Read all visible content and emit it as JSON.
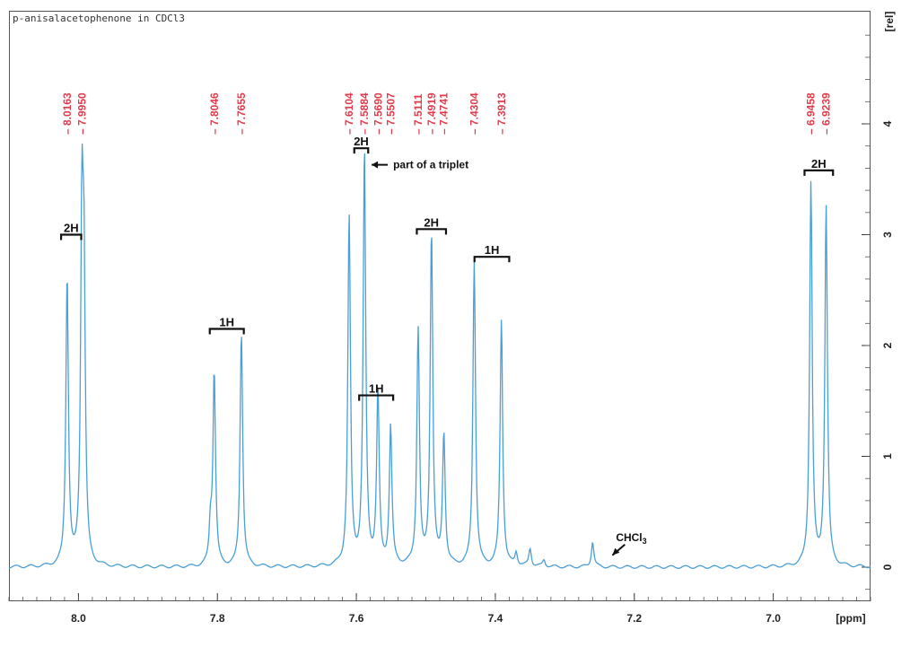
{
  "sample_title": "p-anisalacetophenone in CDCl3",
  "chart_data": {
    "type": "line",
    "title": "p-anisalacetophenone in CDCl3",
    "xlabel": "[ppm]",
    "ylabel": "[rel]",
    "x_axis_reversed": true,
    "xlim": [
      8.1,
      6.86
    ],
    "ylim": [
      -0.25,
      5.0
    ],
    "x_ticks": [
      "8.0",
      "7.8",
      "7.6",
      "7.4",
      "7.2",
      "7.0"
    ],
    "y_ticks": [
      "0",
      "1",
      "2",
      "3",
      "4"
    ],
    "peak_labels": [
      "8.0163",
      "7.9950",
      "7.8046",
      "7.7655",
      "7.6104",
      "7.5884",
      "7.5690",
      "7.5507",
      "7.5111",
      "7.4919",
      "7.4741",
      "7.4304",
      "7.3913",
      "6.9458",
      "6.9239"
    ],
    "peaks": [
      {
        "x": 8.0163,
        "y": 2.62
      },
      {
        "x": 7.995,
        "y": 2.95
      },
      {
        "x": 7.992,
        "y": 2.28
      },
      {
        "x": 7.8046,
        "y": 1.75
      },
      {
        "x": 7.7655,
        "y": 2.12
      },
      {
        "x": 7.81,
        "y": 0.33
      },
      {
        "x": 7.6104,
        "y": 3.15
      },
      {
        "x": 7.5884,
        "y": 3.75
      },
      {
        "x": 7.569,
        "y": 1.57
      },
      {
        "x": 7.5507,
        "y": 1.25
      },
      {
        "x": 7.5111,
        "y": 2.13
      },
      {
        "x": 7.4919,
        "y": 3.02
      },
      {
        "x": 7.4741,
        "y": 1.18
      },
      {
        "x": 7.4304,
        "y": 2.75
      },
      {
        "x": 7.3913,
        "y": 2.23
      },
      {
        "x": 7.37,
        "y": 0.12
      },
      {
        "x": 7.35,
        "y": 0.16
      },
      {
        "x": 7.33,
        "y": 0.06
      },
      {
        "x": 7.26,
        "y": 0.23
      },
      {
        "x": 6.9458,
        "y": 3.47
      },
      {
        "x": 6.9239,
        "y": 3.25
      }
    ],
    "integrals": [
      {
        "label": "2H",
        "from": 8.025,
        "to": 7.996,
        "y": 3.0
      },
      {
        "label": "1H",
        "from": 7.811,
        "to": 7.762,
        "y": 2.15
      },
      {
        "label": "2H",
        "from": 7.603,
        "to": 7.583,
        "y": 3.78
      },
      {
        "label": "1H",
        "from": 7.596,
        "to": 7.547,
        "y": 1.55
      },
      {
        "label": "2H",
        "from": 7.513,
        "to": 7.471,
        "y": 3.05
      },
      {
        "label": "1H",
        "from": 7.43,
        "to": 7.38,
        "y": 2.8
      },
      {
        "label": "2H",
        "from": 6.955,
        "to": 6.914,
        "y": 3.58
      }
    ],
    "annotations": [
      {
        "text": "part of a triplet",
        "x": 7.5884,
        "y": 3.72
      },
      {
        "text": "CHCl3",
        "x": 7.26,
        "y": 0.35
      }
    ]
  }
}
